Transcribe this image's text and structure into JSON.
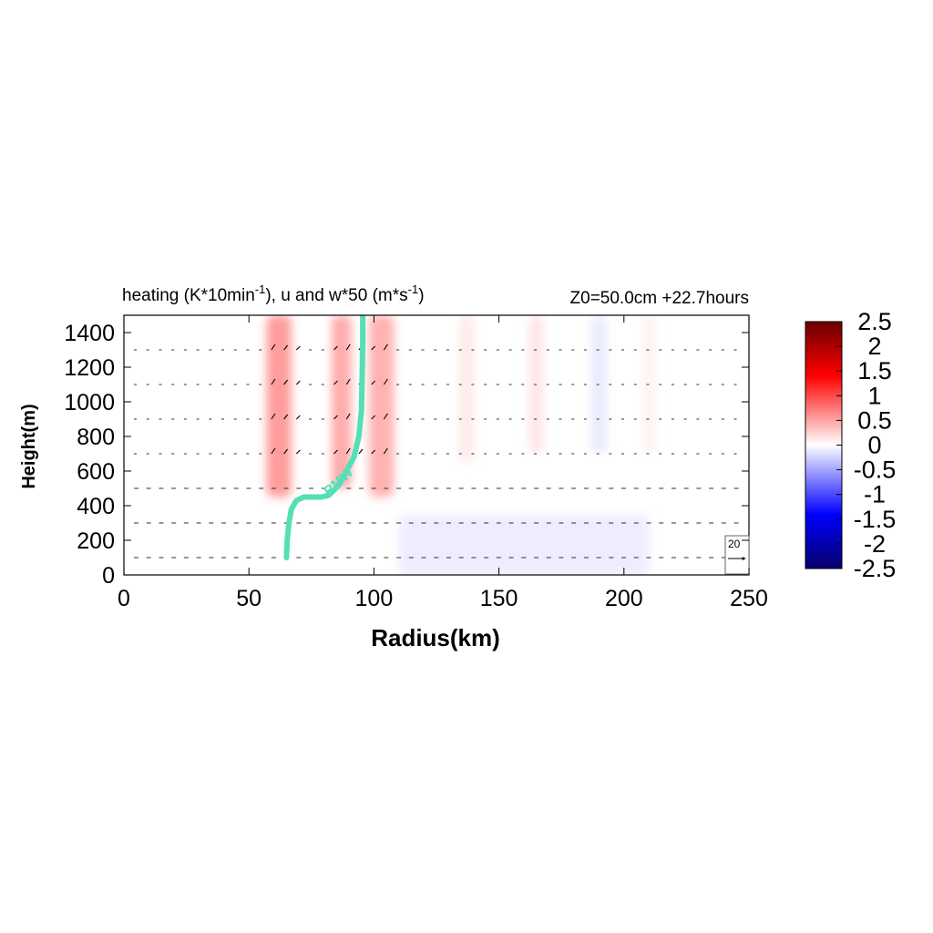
{
  "chart_data": {
    "type": "heatmap",
    "title": {
      "left_main": "heating (K*10min",
      "left_sup1": "-1",
      "left_mid": "), u and w*50 (m*s",
      "left_sup2": "-1",
      "left_end": ")",
      "right": "Z0=50.0cm  +22.7hours"
    },
    "xlabel": "Radius(km)",
    "ylabel": "Height(m)",
    "xlim": [
      0,
      250
    ],
    "ylim": [
      0,
      1500
    ],
    "xticks": [
      "0",
      "50",
      "100",
      "150",
      "200",
      "250"
    ],
    "xtick_values": [
      0,
      50,
      100,
      150,
      200,
      250
    ],
    "yticks": [
      "0",
      "200",
      "400",
      "600",
      "800",
      "1000",
      "1200",
      "1400"
    ],
    "ytick_values": [
      0,
      200,
      400,
      600,
      800,
      1000,
      1200,
      1400
    ],
    "colorbar": {
      "range": [
        -2.5,
        2.5
      ],
      "ticks": [
        "2.5",
        "2",
        "1.5",
        "1",
        "0.5",
        "0",
        "-0.5",
        "-1",
        "-1.5",
        "-2",
        "-2.5"
      ],
      "tick_values": [
        2.5,
        2,
        1.5,
        1,
        0.5,
        0,
        -0.5,
        -1,
        -1.5,
        -2,
        -2.5
      ],
      "colors": [
        "#08006b",
        "#0000ff",
        "#ffffff",
        "#ff0000",
        "#6b0000"
      ]
    },
    "heating_features": [
      {
        "radius_km": 62,
        "width_km": 10,
        "z_bottom_m": 450,
        "z_top_m": 1500,
        "value": 1.4
      },
      {
        "radius_km": 87,
        "width_km": 8,
        "z_bottom_m": 500,
        "z_top_m": 1500,
        "value": 1.2
      },
      {
        "radius_km": 103,
        "width_km": 10,
        "z_bottom_m": 450,
        "z_top_m": 1500,
        "value": 1.1
      },
      {
        "radius_km": 137,
        "width_km": 6,
        "z_bottom_m": 650,
        "z_top_m": 1500,
        "value": 0.3
      },
      {
        "radius_km": 165,
        "width_km": 6,
        "z_bottom_m": 700,
        "z_top_m": 1500,
        "value": 0.35
      },
      {
        "radius_km": 210,
        "width_km": 5,
        "z_bottom_m": 700,
        "z_top_m": 1500,
        "value": 0.2
      },
      {
        "radius_km": 190,
        "width_km": 6,
        "z_bottom_m": 700,
        "z_top_m": 1500,
        "value": -0.3
      },
      {
        "radius_km": 160,
        "width_km": 100,
        "z_bottom_m": 0,
        "z_top_m": 350,
        "value": -0.25
      }
    ],
    "vector_rows_m": [
      100,
      300,
      500,
      700,
      900,
      1100,
      1300
    ],
    "vector_reference": {
      "label": "20",
      "value": 20
    },
    "rmw": {
      "label": "RMW",
      "r_km": [
        65,
        65.3,
        66,
        67,
        69,
        72,
        79,
        82,
        86,
        89,
        92,
        94,
        95,
        95.3,
        95.5,
        95.5
      ],
      "z_m": [
        100,
        200,
        300,
        380,
        430,
        450,
        450,
        460,
        520,
        600,
        680,
        800,
        950,
        1150,
        1350,
        1500
      ]
    }
  }
}
